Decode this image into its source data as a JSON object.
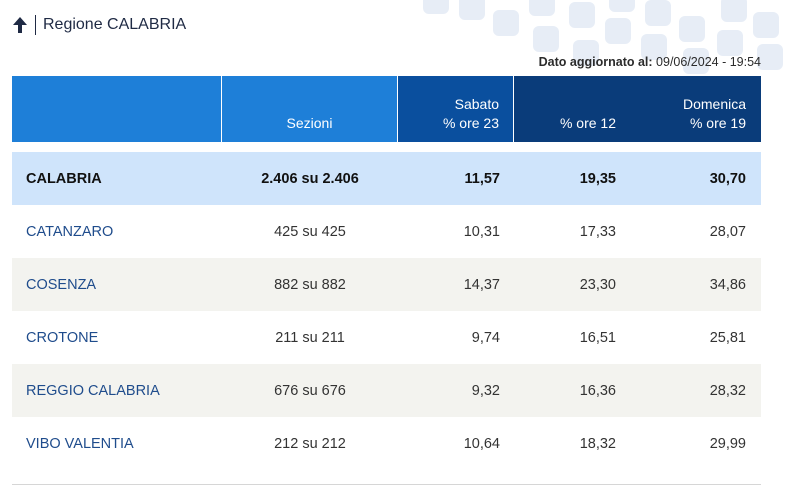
{
  "header": {
    "title": "Regione CALABRIA",
    "icon": "arrow-up-icon",
    "accent_color": "#1f2a44"
  },
  "updated": {
    "label": "Dato aggiornato al:",
    "value": "09/06/2024 - 19:54"
  },
  "columns": {
    "sezioni": "Sezioni",
    "sabato_day": "Sabato",
    "sabato_time": "% ore 23",
    "dom12_time": "% ore 12",
    "domenica_day": "Domenica",
    "dom19_time": "% ore 19"
  },
  "colors": {
    "header_light": "#1e7fd8",
    "header_mid": "#0a4f9e",
    "header_dark": "#0a3c7a",
    "total_row": "#cfe4fb",
    "alt_row": "#f3f3ef"
  },
  "total": {
    "name": "CALABRIA",
    "sezioni": "2.406 su 2.406",
    "sabato23": "11,57",
    "dom12": "19,35",
    "dom19": "30,70"
  },
  "rows": [
    {
      "name": "CATANZARO",
      "sezioni": "425 su 425",
      "sabato23": "10,31",
      "dom12": "17,33",
      "dom19": "28,07"
    },
    {
      "name": "COSENZA",
      "sezioni": "882 su 882",
      "sabato23": "14,37",
      "dom12": "23,30",
      "dom19": "34,86"
    },
    {
      "name": "CROTONE",
      "sezioni": "211 su 211",
      "sabato23": "9,74",
      "dom12": "16,51",
      "dom19": "25,81"
    },
    {
      "name": "REGGIO CALABRIA",
      "sezioni": "676 su 676",
      "sabato23": "9,32",
      "dom12": "16,36",
      "dom19": "28,32"
    },
    {
      "name": "VIBO VALENTIA",
      "sezioni": "212 su 212",
      "sabato23": "10,64",
      "dom12": "18,32",
      "dom19": "29,99"
    }
  ]
}
